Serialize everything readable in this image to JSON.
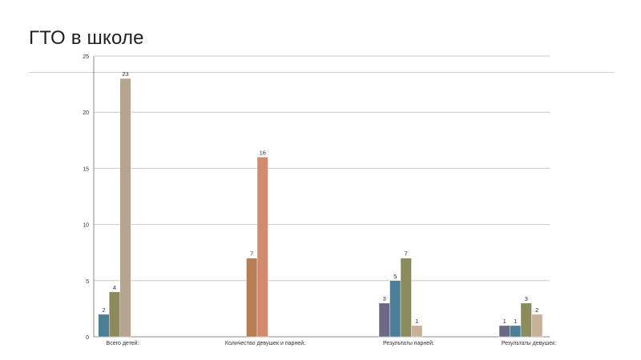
{
  "slide": {
    "title": "ГТО в школе"
  },
  "chart_data": {
    "type": "bar",
    "title": "",
    "xlabel": "",
    "ylabel": "",
    "ylim": [
      0,
      25
    ],
    "yticks": [
      0,
      5,
      10,
      15,
      20,
      25
    ],
    "grid": true,
    "legend": "none",
    "categories": [
      "Всего детей:",
      "Количество девушек и парней:",
      "Результаты парней:",
      "Результаты девушек:"
    ],
    "groups": [
      {
        "category": "Всего детей:",
        "bars": [
          {
            "value": 2,
            "color": "#4a7f95"
          },
          {
            "value": 4,
            "color": "#8b8b5e"
          },
          {
            "value": 23,
            "color": "#b5a48e"
          }
        ]
      },
      {
        "category": "Количество девушек и парней:",
        "bars": [
          {
            "value": 7,
            "color": "#b87d55"
          },
          {
            "value": 16,
            "color": "#d48a70"
          }
        ]
      },
      {
        "category": "Результаты парней:",
        "bars": [
          {
            "value": 3,
            "color": "#6a6a85"
          },
          {
            "value": 5,
            "color": "#4a7f95"
          },
          {
            "value": 7,
            "color": "#8b8b5e"
          },
          {
            "value": 1,
            "color": "#c7b299"
          }
        ]
      },
      {
        "category": "Результаты девушек:",
        "bars": [
          {
            "value": 1,
            "color": "#6a6a85"
          },
          {
            "value": 1,
            "color": "#4a7f95"
          },
          {
            "value": 3,
            "color": "#8b8b5e"
          },
          {
            "value": 2,
            "color": "#c7b299"
          }
        ]
      }
    ]
  }
}
